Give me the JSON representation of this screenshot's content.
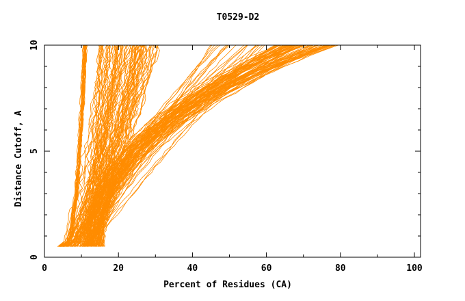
{
  "colors": {
    "curve": "#ff8c00",
    "axis": "#000000",
    "background": "#ffffff"
  },
  "chart_data": {
    "type": "line",
    "title": "T0529-D2",
    "xlabel": "Percent of Residues (CA)",
    "ylabel": "Distance Cutoff, A",
    "xlim": [
      0,
      100
    ],
    "ylim": [
      0,
      10
    ],
    "x_ticks": [
      "0",
      "20",
      "40",
      "60",
      "80",
      "100"
    ],
    "y_ticks": [
      "0",
      "5",
      "10"
    ],
    "grid": false,
    "legend": "none",
    "series_groups": [
      {
        "group": "steep-left",
        "count": 20,
        "x_at_y0_5": [
          3.5,
          5.5
        ],
        "x_at_y10": [
          10.5,
          11.5
        ]
      },
      {
        "group": "dense-left",
        "count": 90,
        "x_at_y0_5": [
          4.0,
          12.0
        ],
        "x_at_y10": [
          15.0,
          31.0
        ]
      },
      {
        "group": "middle",
        "count": 20,
        "x_at_y0_5": [
          11.0,
          14.0
        ],
        "x_at_y10": [
          45.0,
          60.0
        ]
      },
      {
        "group": "dense-right",
        "count": 80,
        "x_at_y0_5": [
          11.0,
          16.0
        ],
        "x_at_y10": [
          62.0,
          80.0
        ]
      }
    ]
  }
}
